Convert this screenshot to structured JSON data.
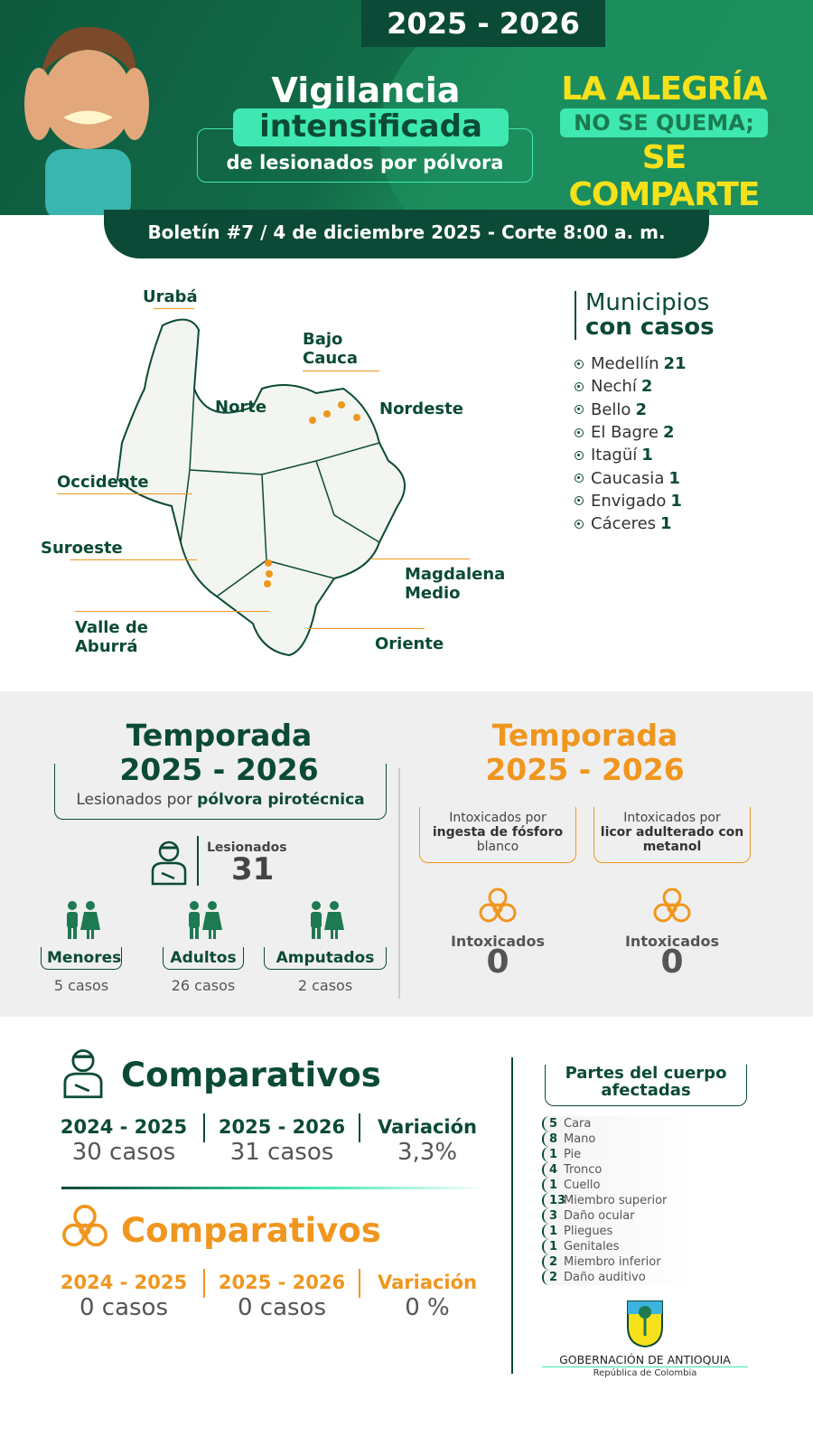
{
  "header": {
    "season": "2025 - 2026",
    "title_line1": "Vigilancia",
    "title_line2": "intensificada",
    "title_line3": "de lesionados por pólvora",
    "slogan_line1": "LA ALEGRÍA",
    "slogan_line2": "NO SE QUEMA;",
    "slogan_line3": "SE COMPARTE",
    "bulletin": "Boletín #7 / 4 de diciembre 2025 - Corte 8:00 a. m."
  },
  "map": {
    "regions": [
      "Urabá",
      "Bajo Cauca",
      "Norte",
      "Nordeste",
      "Occidente",
      "Suroeste",
      "Magdalena Medio",
      "Valle de Aburrá",
      "Oriente"
    ]
  },
  "municipios": {
    "title_line1": "Municipios",
    "title_line2": "con casos",
    "items": [
      {
        "name": "Medellín",
        "count": "21"
      },
      {
        "name": "Nechí",
        "count": "2"
      },
      {
        "name": "Bello",
        "count": "2"
      },
      {
        "name": "El Bagre",
        "count": "2"
      },
      {
        "name": "Itagüí",
        "count": "1"
      },
      {
        "name": "Caucasia",
        "count": "1"
      },
      {
        "name": "Envigado",
        "count": "1"
      },
      {
        "name": "Cáceres",
        "count": "1"
      }
    ]
  },
  "polvora": {
    "title_line1": "Temporada",
    "title_line2": "2025 - 2026",
    "subtitle_plain": "Lesionados por ",
    "subtitle_bold": "pólvora pirotécnica",
    "total_label": "Lesionados",
    "total": "31",
    "categories": [
      {
        "label": "Menores",
        "value": "5 casos"
      },
      {
        "label": "Adultos",
        "value": "26 casos"
      },
      {
        "label": "Amputados",
        "value": "2 casos"
      }
    ]
  },
  "intox": {
    "title_line1": "Temporada",
    "title_line2": "2025 - 2026",
    "items": [
      {
        "line1": "Intoxicados por",
        "bold": "ingesta de fósforo",
        "line3": "blanco",
        "label": "Intoxicados",
        "value": "0"
      },
      {
        "line1": "Intoxicados por",
        "bold": "licor adulterado con metanol",
        "line3": "",
        "label": "Intoxicados",
        "value": "0"
      }
    ]
  },
  "comparativos": [
    {
      "title": "Comparativos",
      "color": "#0b4a36",
      "cols": [
        {
          "head": "2024 - 2025",
          "value": "30 casos"
        },
        {
          "head": "2025 - 2026",
          "value": "31 casos"
        },
        {
          "head": "Variación",
          "value": "3,3%"
        }
      ]
    },
    {
      "title": "Comparativos",
      "color": "#f0961e",
      "cols": [
        {
          "head": "2024 - 2025",
          "value": "0 casos"
        },
        {
          "head": "2025 - 2026",
          "value": "0 casos"
        },
        {
          "head": "Variación",
          "value": "0 %"
        }
      ]
    }
  ],
  "body_parts": {
    "title": "Partes del cuerpo afectadas",
    "items": [
      {
        "n": "5",
        "part": "Cara"
      },
      {
        "n": "8",
        "part": "Mano"
      },
      {
        "n": "1",
        "part": "Pie"
      },
      {
        "n": "4",
        "part": "Tronco"
      },
      {
        "n": "1",
        "part": "Cuello"
      },
      {
        "n": "13",
        "part": "Miembro superior"
      },
      {
        "n": "3",
        "part": "Daño ocular"
      },
      {
        "n": "1",
        "part": "Pliegues"
      },
      {
        "n": "1",
        "part": "Genitales"
      },
      {
        "n": "2",
        "part": "Miembro inferior"
      },
      {
        "n": "2",
        "part": "Daño auditivo"
      }
    ]
  },
  "footer": {
    "org": "GOBERNACIÓN DE ANTIOQUIA",
    "country": "República de Colombia"
  },
  "colors": {
    "dark_green": "#0b4a36",
    "mint": "#3ee8b0",
    "orange": "#f0961e",
    "yellow": "#f7e11a"
  }
}
